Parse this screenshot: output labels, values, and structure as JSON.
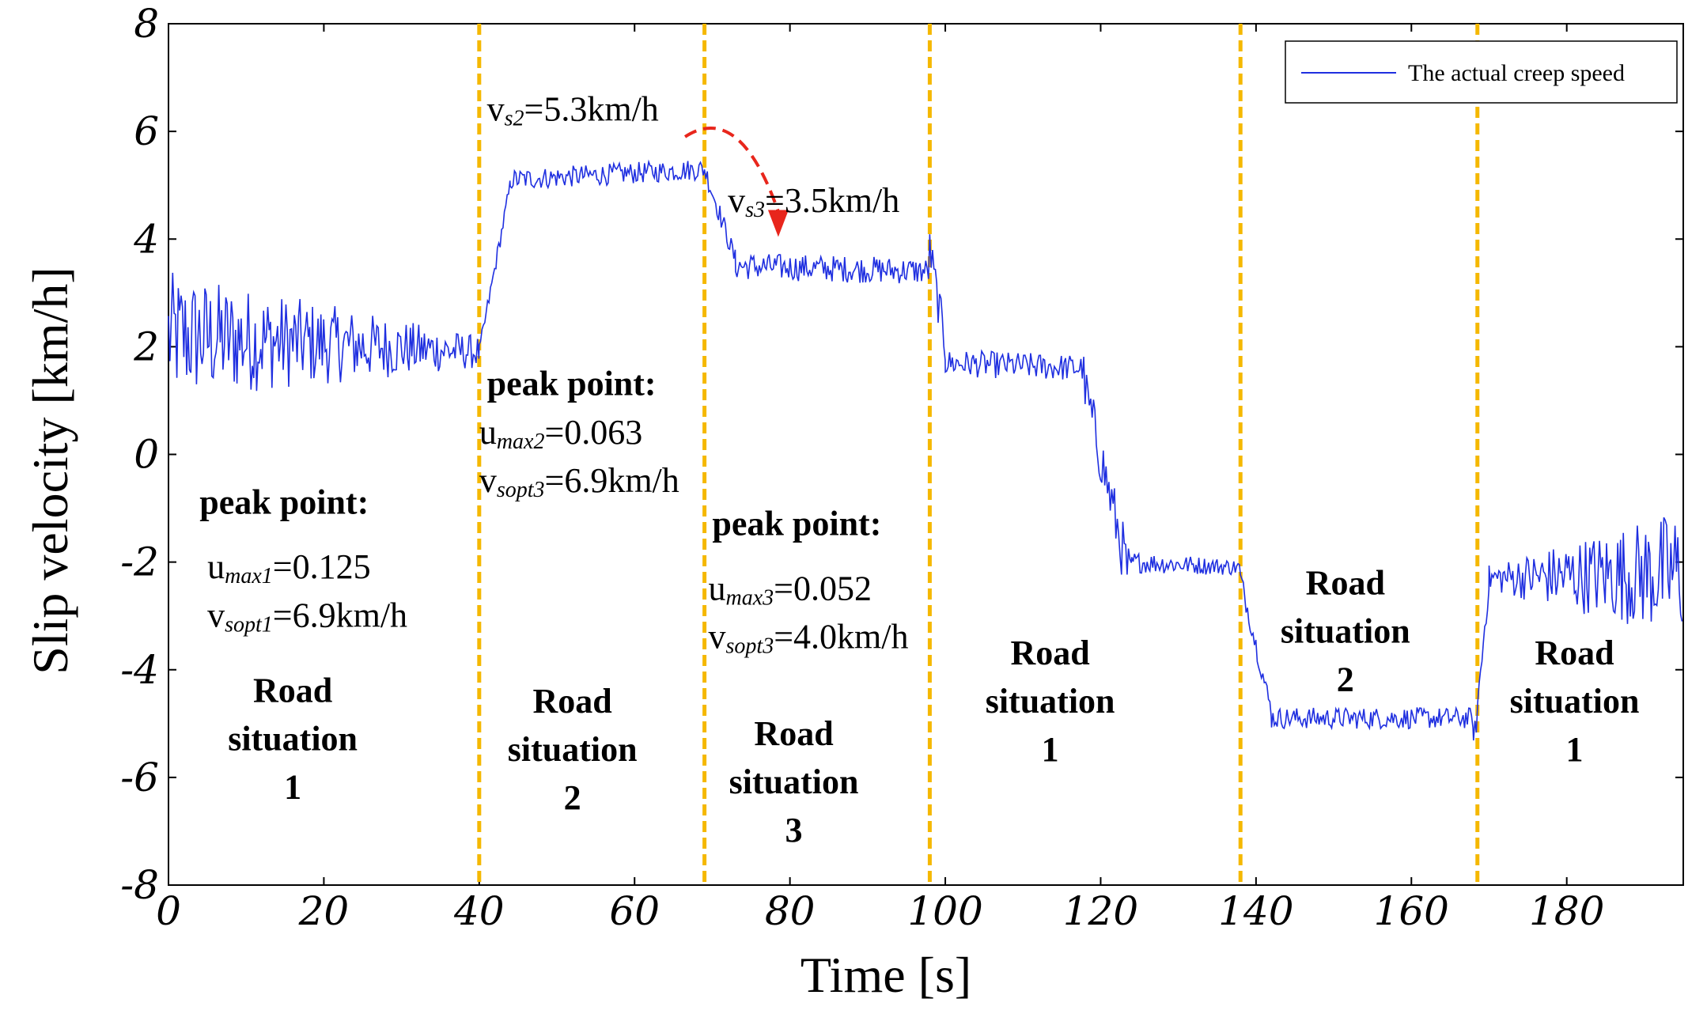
{
  "chart_data": {
    "type": "line",
    "title": "",
    "xlabel": "Time [s]",
    "ylabel": "Slip velocity [km/h]",
    "xlim": [
      0,
      195
    ],
    "ylim": [
      -8,
      8
    ],
    "xticks": [
      0,
      20,
      40,
      60,
      80,
      100,
      120,
      140,
      160,
      180
    ],
    "yticks": [
      -8,
      -6,
      -4,
      -2,
      0,
      2,
      4,
      6,
      8
    ],
    "grid": false,
    "legend": {
      "placement": "top-right",
      "entries": [
        "The actual creep speed"
      ]
    },
    "series": [
      {
        "name": "The actual creep speed",
        "color": "#1f2fe0",
        "segments": [
          {
            "t_start": 0,
            "t_end": 40,
            "level_start": 2.2,
            "level_end": 1.9,
            "noise_start": 1.2,
            "noise_end": 0.3
          },
          {
            "t_start": 40,
            "t_end": 44,
            "level_start": 1.9,
            "level_end": 5.0,
            "noise_start": 0.15,
            "noise_end": 0.15
          },
          {
            "t_start": 44,
            "t_end": 69,
            "level_start": 5.1,
            "level_end": 5.3,
            "noise_start": 0.2,
            "noise_end": 0.2
          },
          {
            "t_start": 69,
            "t_end": 73,
            "level_start": 5.3,
            "level_end": 3.6,
            "noise_start": 0.2,
            "noise_end": 0.2
          },
          {
            "t_start": 73,
            "t_end": 98,
            "level_start": 3.5,
            "level_end": 3.4,
            "noise_start": 0.25,
            "noise_end": 0.25
          },
          {
            "t_start": 98,
            "t_end": 100,
            "level_start": 3.8,
            "level_end": 2.0,
            "noise_start": 0.4,
            "noise_end": 0.4
          },
          {
            "t_start": 100,
            "t_end": 118,
            "level_start": 1.7,
            "level_end": 1.6,
            "noise_start": 0.25,
            "noise_end": 0.25
          },
          {
            "t_start": 118,
            "t_end": 124,
            "level_start": 1.2,
            "level_end": -2.5,
            "noise_start": 0.5,
            "noise_end": 0.6
          },
          {
            "t_start": 124,
            "t_end": 138,
            "level_start": -2.0,
            "level_end": -2.1,
            "noise_start": 0.2,
            "noise_end": 0.15
          },
          {
            "t_start": 138,
            "t_end": 142,
            "level_start": -2.3,
            "level_end": -4.8,
            "noise_start": 0.2,
            "noise_end": 0.2
          },
          {
            "t_start": 142,
            "t_end": 168,
            "level_start": -4.9,
            "level_end": -4.9,
            "noise_start": 0.2,
            "noise_end": 0.2
          },
          {
            "t_start": 168,
            "t_end": 170,
            "level_start": -5.5,
            "level_end": -2.3,
            "noise_start": 0.3,
            "noise_end": 0.3
          },
          {
            "t_start": 170,
            "t_end": 195,
            "level_start": -2.3,
            "level_end": -2.2,
            "noise_start": 0.25,
            "noise_end": 1.2
          }
        ]
      }
    ],
    "vertical_lines": {
      "color": "#f5b800",
      "x": [
        40,
        69,
        98,
        138,
        168.5
      ]
    },
    "arrow": {
      "color": "#e8261c",
      "from": [
        66.5,
        5.9
      ],
      "to": [
        78.5,
        4.1
      ]
    },
    "annotations": [
      {
        "id": "ann1_peak",
        "text": "peak point:",
        "x": 4,
        "y": -1.1
      },
      {
        "id": "ann1_u",
        "base": "u",
        "sub": "max1",
        "rest": "=0.125",
        "x": 5,
        "y": -2.3
      },
      {
        "id": "ann1_v",
        "base": "v",
        "sub": "sopt1",
        "rest": "=6.9km/h",
        "x": 5,
        "y": -3.2
      },
      {
        "id": "ann2_peak",
        "text": "peak point:",
        "x": 41,
        "y": 1.1
      },
      {
        "id": "ann2_u",
        "base": "u",
        "sub": "max2",
        "rest": "=0.063",
        "x": 40,
        "y": 0.2
      },
      {
        "id": "ann2_v",
        "base": "v",
        "sub": "sopt3",
        "rest": "=6.9km/h",
        "x": 40,
        "y": -0.7
      },
      {
        "id": "ann3_peak",
        "text": "peak point:",
        "x": 70,
        "y": -1.5
      },
      {
        "id": "ann3_u",
        "base": "u",
        "sub": "max3",
        "rest": "=0.052",
        "x": 69.5,
        "y": -2.7
      },
      {
        "id": "ann3_v",
        "base": "v",
        "sub": "sopt3",
        "rest": "=4.0km/h",
        "x": 69.5,
        "y": -3.6
      },
      {
        "id": "ann_vs2",
        "base": "v",
        "sub": "s2",
        "rest": "=5.3km/h",
        "x": 41,
        "y": 6.2
      },
      {
        "id": "ann_vs3",
        "base": "v",
        "sub": "s3",
        "rest": "=3.5km/h",
        "x": 72,
        "y": 4.5
      }
    ],
    "road_labels": [
      {
        "id": "road_1a",
        "lines": [
          "Road",
          "situation",
          "1"
        ],
        "x": 16,
        "y": -4.6
      },
      {
        "id": "road_2a",
        "lines": [
          "Road",
          "situation",
          "2"
        ],
        "x": 52,
        "y": -4.8
      },
      {
        "id": "road_3",
        "lines": [
          "Road",
          "situation",
          "3"
        ],
        "x": 80.5,
        "y": -5.4
      },
      {
        "id": "road_1b",
        "lines": [
          "Road",
          "situation",
          "1"
        ],
        "x": 113.5,
        "y": -3.9
      },
      {
        "id": "road_2b",
        "lines": [
          "Road",
          "situation",
          "2"
        ],
        "x": 151.5,
        "y": -2.6
      },
      {
        "id": "road_1c",
        "lines": [
          "Road",
          "situation",
          "1"
        ],
        "x": 181,
        "y": -3.9
      }
    ]
  }
}
